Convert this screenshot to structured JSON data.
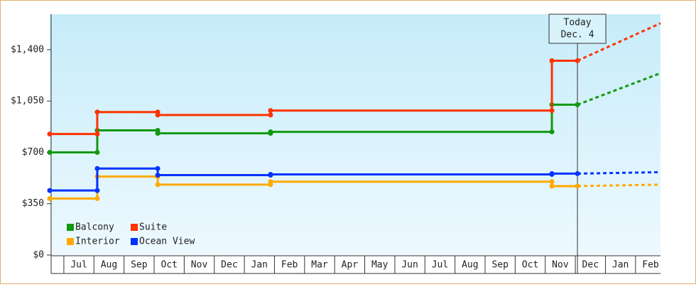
{
  "chart_data": {
    "type": "line",
    "x": [
      0.53,
      2.11,
      2.11,
      4.12,
      4.12,
      7.87,
      7.87,
      17.22,
      17.22,
      18.07
    ],
    "forecast_x": [
      18.07,
      20.83
    ],
    "series": [
      {
        "name": "Balcony",
        "color": "#119911",
        "values": [
          700,
          700,
          850,
          850,
          830,
          830,
          840,
          840,
          1025,
          1025
        ],
        "forecast": [
          1025,
          1240
        ]
      },
      {
        "name": "Suite",
        "color": "#ff3300",
        "values": [
          825,
          825,
          975,
          975,
          955,
          955,
          985,
          985,
          1325,
          1325
        ],
        "forecast": [
          1325,
          1580
        ]
      },
      {
        "name": "Interior",
        "color": "#ffaa00",
        "values": [
          385,
          385,
          535,
          535,
          480,
          480,
          500,
          500,
          470,
          470
        ],
        "forecast": [
          470,
          480
        ]
      },
      {
        "name": "Ocean View",
        "color": "#0033ff",
        "values": [
          440,
          440,
          590,
          590,
          545,
          545,
          550,
          550,
          555,
          555
        ],
        "forecast": [
          555,
          565
        ]
      }
    ],
    "xlim": [
      0.53,
      20.83
    ],
    "xticks": [
      {
        "value": 1.5,
        "label": "Jul"
      },
      {
        "value": 2.5,
        "label": "Aug"
      },
      {
        "value": 3.5,
        "label": "Sep"
      },
      {
        "value": 4.5,
        "label": "Oct"
      },
      {
        "value": 5.5,
        "label": "Nov"
      },
      {
        "value": 6.5,
        "label": "Dec"
      },
      {
        "value": 7.5,
        "label": "Jan"
      },
      {
        "value": 8.5,
        "label": "Feb"
      },
      {
        "value": 9.5,
        "label": "Mar"
      },
      {
        "value": 10.5,
        "label": "Apr"
      },
      {
        "value": 11.5,
        "label": "May"
      },
      {
        "value": 12.5,
        "label": "Jun"
      },
      {
        "value": 13.5,
        "label": "Jul"
      },
      {
        "value": 14.5,
        "label": "Aug"
      },
      {
        "value": 15.5,
        "label": "Sep"
      },
      {
        "value": 16.5,
        "label": "Oct"
      },
      {
        "value": 17.5,
        "label": "Nov"
      },
      {
        "value": 18.5,
        "label": "Dec"
      },
      {
        "value": 19.5,
        "label": "Jan"
      },
      {
        "value": 20.5,
        "label": "Feb"
      }
    ],
    "ylim": [
      0,
      1642
    ],
    "yticks": [
      {
        "value": 0,
        "label": "$0"
      },
      {
        "value": 350,
        "label": "$350"
      },
      {
        "value": 700,
        "label": "$700"
      },
      {
        "value": 1050,
        "label": "$1,050"
      },
      {
        "value": 1400,
        "label": "$1,400"
      }
    ],
    "today": {
      "x": 18.07,
      "text": [
        "Today",
        "Dec. 4"
      ]
    },
    "legend": "lower left"
  }
}
